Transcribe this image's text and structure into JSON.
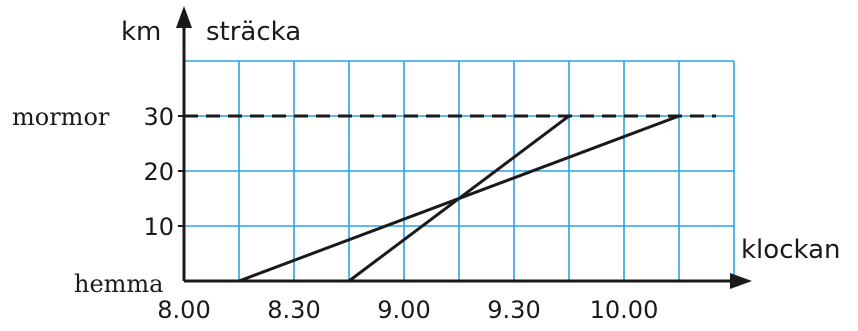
{
  "chart_data": {
    "type": "line",
    "title": "",
    "xlabel": "klockan",
    "ylabel": "sträcka",
    "yunit": "km",
    "x_tick_labels": [
      "8.00",
      "8.30",
      "9.00",
      "9.30",
      "10.00"
    ],
    "y_tick_labels": [
      "10",
      "20",
      "30"
    ],
    "x_range_minutes": [
      480,
      640
    ],
    "y_range": [
      0,
      40
    ],
    "grid": true,
    "grid_color": "#29a3e0",
    "line_color": "#1a1a1a",
    "origin_label": "hemma",
    "reference_line": {
      "y": 30,
      "label": "mormor",
      "style": "dashed"
    },
    "series": [
      {
        "values": [
          {
            "x": "8.15",
            "y": 0
          },
          {
            "x": "10.15",
            "y": 30
          }
        ]
      },
      {
        "values": [
          {
            "x": "8.45",
            "y": 0
          },
          {
            "x": "9.45",
            "y": 30
          }
        ]
      }
    ]
  }
}
